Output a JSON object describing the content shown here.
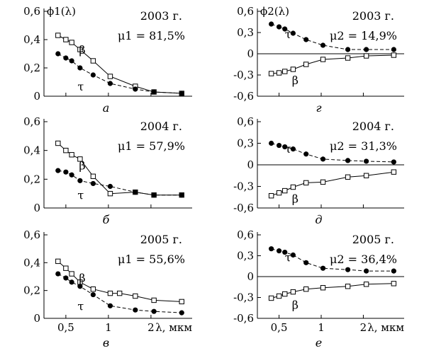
{
  "figure": {
    "x_axis_label": "λ, мкм"
  },
  "panels": [
    {
      "sublabel": "а",
      "ylabel": "ϕ1(λ)",
      "year": "2003 г.",
      "mu": "μ1 = 81,5%",
      "ylim": [
        0,
        0.6
      ],
      "yticks": [
        "0",
        "0,2",
        "0,4",
        "0,6"
      ],
      "yvals": [
        0,
        0.2,
        0.4,
        0.6
      ],
      "zero_line": false,
      "show_xticks": false,
      "chart_data": {
        "type": "line",
        "xlim": [
          0.35,
          3.65
        ],
        "ylim": [
          0,
          0.6
        ],
        "series": [
          {
            "name": "β",
            "marker": "open-square",
            "x": [
              0.44,
              0.5,
              0.55,
              0.63,
              0.78,
              1.03,
              1.55,
              2.1,
              3.3
            ],
            "y": [
              0.43,
              0.4,
              0.38,
              0.33,
              0.25,
              0.14,
              0.07,
              0.03,
              0.02
            ]
          },
          {
            "name": "τ",
            "marker": "filled-circle",
            "x": [
              0.44,
              0.5,
              0.55,
              0.63,
              0.78,
              1.03,
              1.55,
              2.1,
              3.3
            ],
            "y": [
              0.3,
              0.27,
              0.25,
              0.2,
              0.15,
              0.09,
              0.05,
              0.03,
              0.02
            ]
          }
        ]
      }
    },
    {
      "sublabel": "г",
      "ylabel": "ϕ2(λ)",
      "year": "2003 г.",
      "mu": "μ2 = 14,9%",
      "ylim": [
        -0.6,
        0.6
      ],
      "yticks": [
        "0,6",
        "0,3",
        "0",
        "-0,3",
        "-0,6"
      ],
      "yvals": [
        0.6,
        0.3,
        0,
        -0.3,
        -0.6
      ],
      "zero_line": true,
      "show_xticks": false,
      "chart_data": {
        "type": "line",
        "xlim": [
          0.35,
          3.65
        ],
        "ylim": [
          -0.6,
          0.6
        ],
        "series": [
          {
            "name": "τ",
            "marker": "filled-circle",
            "x": [
              0.44,
              0.5,
              0.55,
              0.63,
              0.78,
              1.03,
              1.55,
              2.1,
              3.3
            ],
            "y": [
              0.42,
              0.38,
              0.35,
              0.29,
              0.2,
              0.12,
              0.06,
              0.06,
              0.06
            ]
          },
          {
            "name": "β",
            "marker": "open-square",
            "x": [
              0.44,
              0.5,
              0.55,
              0.63,
              0.78,
              1.03,
              1.55,
              2.1,
              3.3
            ],
            "y": [
              -0.28,
              -0.27,
              -0.25,
              -0.22,
              -0.15,
              -0.08,
              -0.06,
              -0.03,
              -0.02
            ]
          }
        ]
      }
    },
    {
      "sublabel": "б",
      "ylabel": "",
      "year": "2004 г.",
      "mu": "μ1 = 57,9%",
      "ylim": [
        0,
        0.6
      ],
      "yticks": [
        "0",
        "0,2",
        "0,4",
        "0,6"
      ],
      "yvals": [
        0,
        0.2,
        0.4,
        0.6
      ],
      "zero_line": false,
      "show_xticks": false,
      "chart_data": {
        "type": "line",
        "xlim": [
          0.35,
          3.65
        ],
        "ylim": [
          0,
          0.6
        ],
        "series": [
          {
            "name": "β",
            "marker": "open-square",
            "x": [
              0.44,
              0.5,
              0.55,
              0.63,
              0.78,
              1.03,
              1.55,
              2.1,
              3.3
            ],
            "y": [
              0.45,
              0.4,
              0.37,
              0.34,
              0.22,
              0.1,
              0.11,
              0.09,
              0.09
            ]
          },
          {
            "name": "τ",
            "marker": "filled-circle",
            "x": [
              0.44,
              0.5,
              0.55,
              0.63,
              0.78,
              1.03,
              1.55,
              2.1,
              3.3
            ],
            "y": [
              0.26,
              0.25,
              0.23,
              0.19,
              0.17,
              0.15,
              0.11,
              0.09,
              0.09
            ]
          }
        ]
      }
    },
    {
      "sublabel": "д",
      "ylabel": "",
      "year": "2004 г.",
      "mu": "μ2 = 31,3%",
      "ylim": [
        -0.6,
        0.6
      ],
      "yticks": [
        "0,6",
        "0,3",
        "0",
        "-0,3",
        "-0,6"
      ],
      "yvals": [
        0.6,
        0.3,
        0,
        -0.3,
        -0.6
      ],
      "zero_line": true,
      "show_xticks": false,
      "chart_data": {
        "type": "line",
        "xlim": [
          0.35,
          3.65
        ],
        "ylim": [
          -0.6,
          0.6
        ],
        "series": [
          {
            "name": "τ",
            "marker": "filled-circle",
            "x": [
              0.44,
              0.5,
              0.55,
              0.63,
              0.78,
              1.03,
              1.55,
              2.1,
              3.3
            ],
            "y": [
              0.3,
              0.27,
              0.25,
              0.22,
              0.15,
              0.08,
              0.06,
              0.05,
              0.04
            ]
          },
          {
            "name": "β",
            "marker": "open-square",
            "x": [
              0.44,
              0.5,
              0.55,
              0.63,
              0.78,
              1.03,
              1.55,
              2.1,
              3.3
            ],
            "y": [
              -0.43,
              -0.39,
              -0.36,
              -0.31,
              -0.25,
              -0.24,
              -0.17,
              -0.15,
              -0.1
            ]
          }
        ]
      }
    },
    {
      "sublabel": "в",
      "ylabel": "",
      "year": "2005 г.",
      "mu": "μ1 = 55,6%",
      "ylim": [
        0,
        0.6
      ],
      "yticks": [
        "0",
        "0,2",
        "0,4",
        "0,6"
      ],
      "yvals": [
        0,
        0.2,
        0.4,
        0.6
      ],
      "zero_line": false,
      "show_xticks": true,
      "chart_data": {
        "type": "line",
        "xlim": [
          0.35,
          3.65
        ],
        "ylim": [
          0,
          0.6
        ],
        "xticks": [
          "0,5",
          "1",
          "2"
        ],
        "xvals": [
          0.5,
          1,
          2
        ],
        "series": [
          {
            "name": "β",
            "marker": "open-square",
            "x": [
              0.44,
              0.5,
              0.55,
              0.63,
              0.78,
              1.03,
              1.2,
              1.55,
              2.1,
              3.3
            ],
            "y": [
              0.41,
              0.36,
              0.32,
              0.26,
              0.21,
              0.18,
              0.18,
              0.16,
              0.13,
              0.12
            ]
          },
          {
            "name": "τ",
            "marker": "filled-circle",
            "x": [
              0.44,
              0.5,
              0.55,
              0.63,
              0.78,
              1.03,
              1.55,
              2.1,
              3.3
            ],
            "y": [
              0.32,
              0.29,
              0.26,
              0.23,
              0.17,
              0.09,
              0.06,
              0.05,
              0.04
            ]
          }
        ]
      }
    },
    {
      "sublabel": "е",
      "ylabel": "",
      "year": "2005 г.",
      "mu": "μ2 = 36,4%",
      "ylim": [
        -0.6,
        0.6
      ],
      "yticks": [
        "0,6",
        "0,3",
        "0",
        "-0,3",
        "-0,6"
      ],
      "yvals": [
        0.6,
        0.3,
        0,
        -0.3,
        -0.6
      ],
      "zero_line": true,
      "show_xticks": true,
      "chart_data": {
        "type": "line",
        "xlim": [
          0.35,
          3.65
        ],
        "ylim": [
          -0.6,
          0.6
        ],
        "xticks": [
          "0,5",
          "1",
          "2"
        ],
        "xvals": [
          0.5,
          1,
          2
        ],
        "series": [
          {
            "name": "τ",
            "marker": "filled-circle",
            "x": [
              0.44,
              0.5,
              0.55,
              0.63,
              0.78,
              1.03,
              1.55,
              2.1,
              3.3
            ],
            "y": [
              0.4,
              0.37,
              0.35,
              0.31,
              0.2,
              0.12,
              0.1,
              0.08,
              0.08
            ]
          },
          {
            "name": "β",
            "marker": "open-square",
            "x": [
              0.44,
              0.5,
              0.55,
              0.63,
              0.78,
              1.03,
              1.55,
              2.1,
              3.3
            ],
            "y": [
              -0.31,
              -0.28,
              -0.25,
              -0.22,
              -0.18,
              -0.16,
              -0.14,
              -0.11,
              -0.1
            ]
          }
        ]
      }
    }
  ]
}
